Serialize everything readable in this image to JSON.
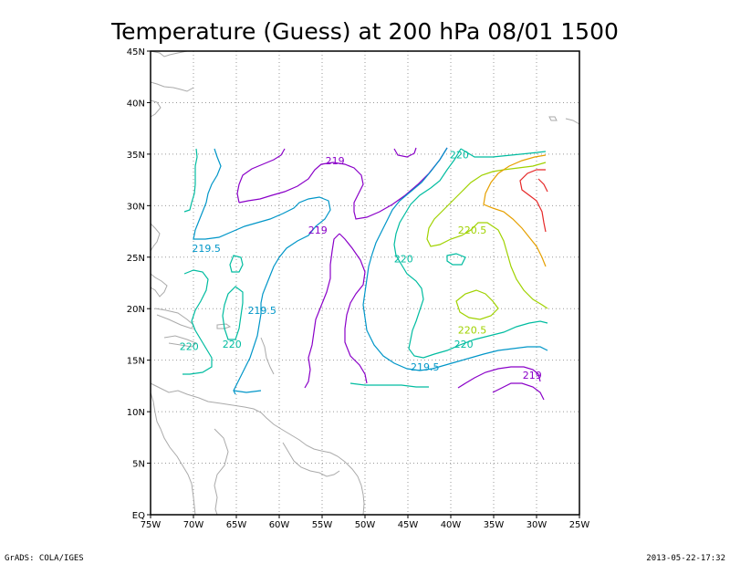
{
  "title": "Temperature (Guess) at 200 hPa 08/01 1500",
  "footer_left": "GrADS: COLA/IGES",
  "footer_right": "2013-05-22-17:32",
  "map": {
    "lon_range": [
      -75,
      -25
    ],
    "lat_range": [
      0,
      45
    ],
    "grid": "dotted",
    "x_tick_labels": [
      "75W",
      "70W",
      "65W",
      "60W",
      "55W",
      "50W",
      "45W",
      "40W",
      "35W",
      "30W",
      "25W"
    ],
    "y_tick_labels": [
      "EQ",
      "5N",
      "10N",
      "15N",
      "20N",
      "25N",
      "30N",
      "35N",
      "40N",
      "45N"
    ]
  },
  "contour_labels": [
    {
      "text": "219",
      "lon": -53.5,
      "lat": 34.0,
      "color": "#8a00c8"
    },
    {
      "text": "219",
      "lon": -55.5,
      "lat": 27.3,
      "color": "#8a00c8"
    },
    {
      "text": "219",
      "lon": -30.5,
      "lat": 13.2,
      "color": "#8a00c8"
    },
    {
      "text": "219.5",
      "lon": -68.5,
      "lat": 25.5,
      "color": "#0096c8"
    },
    {
      "text": "219.5",
      "lon": -62.0,
      "lat": 19.5,
      "color": "#0096c8"
    },
    {
      "text": "219.5",
      "lon": -43.0,
      "lat": 14.0,
      "color": "#0096c8"
    },
    {
      "text": "220",
      "lon": -39.0,
      "lat": 34.6,
      "color": "#00bca0"
    },
    {
      "text": "220",
      "lon": -45.5,
      "lat": 24.5,
      "color": "#00bca0"
    },
    {
      "text": "220",
      "lon": -70.5,
      "lat": 16.0,
      "color": "#00bca0"
    },
    {
      "text": "220",
      "lon": -65.5,
      "lat": 16.2,
      "color": "#00bca0"
    },
    {
      "text": "220",
      "lon": -38.5,
      "lat": 16.2,
      "color": "#00bca0"
    },
    {
      "text": "220.5",
      "lon": -37.5,
      "lat": 27.3,
      "color": "#a0d200"
    },
    {
      "text": "220.5",
      "lon": -37.5,
      "lat": 17.6,
      "color": "#a0d200"
    }
  ],
  "colors": {
    "c219": "#8a00c8",
    "c2195": "#0096c8",
    "c220": "#00bca0",
    "c2205": "#a0d200",
    "c221": "#e6a000",
    "c2215": "#e62828",
    "land": "#aaaaaa"
  }
}
